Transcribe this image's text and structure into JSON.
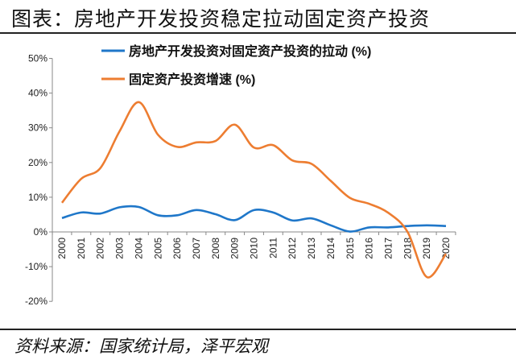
{
  "title": "图表：房地产开发投资稳定拉动固定资产投资",
  "source": "资料来源：国家统计局，泽平宏观",
  "chart_data": {
    "type": "line",
    "title": "",
    "xlabel": "",
    "ylabel": "",
    "ylim": [
      -20,
      50
    ],
    "yticks": [
      -20,
      -10,
      0,
      10,
      20,
      30,
      40,
      50
    ],
    "ytick_labels": [
      "-20%",
      "-10%",
      "0%",
      "10%",
      "20%",
      "30%",
      "40%",
      "50%"
    ],
    "categories": [
      "2000",
      "2001",
      "2002",
      "2003",
      "2004",
      "2005",
      "2006",
      "2007",
      "2008",
      "2009",
      "2010",
      "2011",
      "2012",
      "2013",
      "2014",
      "2015",
      "2016",
      "2017",
      "2018",
      "2019",
      "2020"
    ],
    "legend_position": "top",
    "grid": false,
    "smooth": true,
    "series": [
      {
        "name": "房地产开发投资对固定资产投资的拉动 (%)",
        "color": "#1f77c9",
        "values": [
          4.0,
          5.6,
          5.3,
          7.1,
          7.2,
          4.8,
          4.8,
          6.3,
          5.1,
          3.4,
          6.3,
          5.6,
          3.3,
          3.9,
          1.9,
          0.1,
          1.3,
          1.3,
          1.7,
          1.9,
          1.7
        ]
      },
      {
        "name": "固定资产投资增速 (%)",
        "color": "#ed7d31",
        "values": [
          8.4,
          15.3,
          18.4,
          29.0,
          37.4,
          28.0,
          24.5,
          25.8,
          26.2,
          30.9,
          24.3,
          25.0,
          20.6,
          19.6,
          14.7,
          9.8,
          8.1,
          5.5,
          0.0,
          -13.0,
          -6.3
        ]
      }
    ]
  }
}
